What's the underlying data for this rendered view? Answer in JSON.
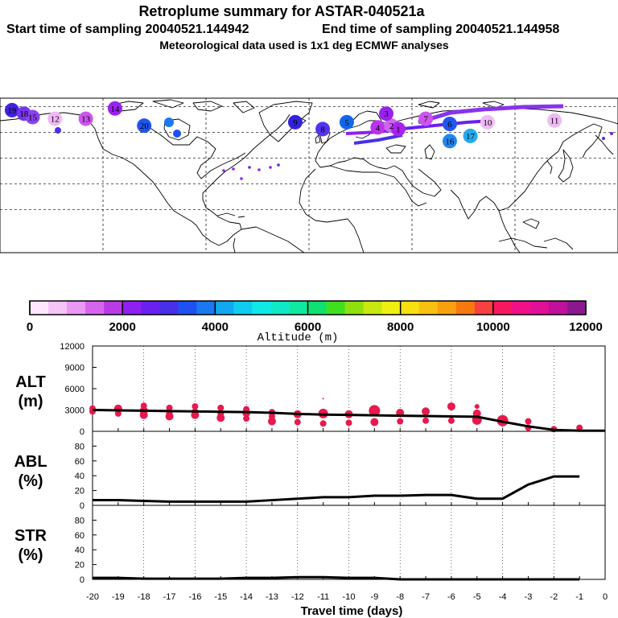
{
  "header": {
    "title": "Retroplume summary for ASTAR-040521a",
    "start_label": "Start time of sampling 20040521.144942",
    "end_label": "End time of sampling 20040521.144958",
    "met_label": "Meteorological data used is 1x1 deg ECMWF analyses"
  },
  "map": {
    "plume_labels": [
      {
        "text": "19",
        "lon": -173,
        "lat": 73,
        "color": "#4422dd"
      },
      {
        "text": "18",
        "lon": -166,
        "lat": 71,
        "color": "#7733ee"
      },
      {
        "text": "15",
        "lon": -161,
        "lat": 69,
        "color": "#8844ee"
      },
      {
        "text": "12",
        "lon": -148,
        "lat": 68,
        "color": "#f0b8f4"
      },
      {
        "text": "13",
        "lon": -130,
        "lat": 68,
        "color": "#cc55ee"
      },
      {
        "text": "14",
        "lon": -113,
        "lat": 74,
        "color": "#9922ee"
      },
      {
        "text": "20",
        "lon": -96,
        "lat": 64,
        "color": "#2255ee"
      },
      {
        "text": "9",
        "lon": -8,
        "lat": 66,
        "color": "#3322dd"
      },
      {
        "text": "8",
        "lon": 8,
        "lat": 62,
        "color": "#5533ee"
      },
      {
        "text": "5",
        "lon": 22,
        "lat": 66,
        "color": "#1166ee"
      },
      {
        "text": "4",
        "lon": 40,
        "lat": 63,
        "color": "#bb33ee"
      },
      {
        "text": "2",
        "lon": 48,
        "lat": 64,
        "color": "#cc66f0"
      },
      {
        "text": "3",
        "lon": 45,
        "lat": 71,
        "color": "#9922ee"
      },
      {
        "text": "1",
        "lon": 52,
        "lat": 62,
        "color": "#aa22ee"
      },
      {
        "text": "7",
        "lon": 68,
        "lat": 68,
        "color": "#cc55ee"
      },
      {
        "text": "6",
        "lon": 82,
        "lat": 65,
        "color": "#2255ee"
      },
      {
        "text": "10",
        "lon": 104,
        "lat": 66,
        "color": "#eebbf4"
      },
      {
        "text": "11",
        "lon": 143,
        "lat": 67,
        "color": "#eebbf4"
      },
      {
        "text": "16",
        "lon": 82,
        "lat": 55,
        "color": "#2288ee"
      },
      {
        "text": "17",
        "lon": 94,
        "lat": 58,
        "color": "#22aaee"
      }
    ]
  },
  "colorbar": {
    "tick_labels": [
      "0",
      "2000",
      "4000",
      "6000",
      "8000",
      "10000",
      "12000"
    ],
    "axis_label": "Altitude (m)",
    "colors": [
      "#ffe8ff",
      "#f6c4f8",
      "#ea98f4",
      "#d665ee",
      "#b93be8",
      "#8f20f2",
      "#6a20f0",
      "#4830e8",
      "#2050f0",
      "#1a78f0",
      "#10a8f0",
      "#10ccf0",
      "#10e8e8",
      "#10e8c8",
      "#10e8a0",
      "#10e070",
      "#40e020",
      "#90e010",
      "#c8e810",
      "#f0f010",
      "#f8e010",
      "#f8c010",
      "#f8a010",
      "#f87810",
      "#f84040",
      "#f81860",
      "#f01088",
      "#e01098",
      "#c0109c",
      "#8c1890"
    ]
  },
  "chart_data": {
    "type": "line",
    "title": "Retroplume summary for ASTAR-040521a",
    "x": [
      -20,
      -19,
      -18,
      -17,
      -16,
      -15,
      -14,
      -13,
      -12,
      -11,
      -10,
      -9,
      -8,
      -7,
      -6,
      -5,
      -4,
      -3,
      -2,
      -1
    ],
    "xlabel": "Travel time (days)",
    "x_tick_labels": [
      "-20",
      "-19",
      "-18",
      "-17",
      "-16",
      "-15",
      "-14",
      "-13",
      "-12",
      "-11",
      "-10",
      "-9",
      "-8",
      "-7",
      "-6",
      "-5",
      "-4",
      "-3",
      "-2",
      "-1",
      "0"
    ],
    "xlim": [
      -20,
      0
    ],
    "panels": [
      {
        "name": "alt",
        "label_line1": "ALT",
        "label_line2": "(m)",
        "ylim": [
          0,
          12000
        ],
        "y_tick_labels": [
          "0",
          "3000",
          "6000",
          "9000",
          "12000"
        ],
        "series": [
          {
            "name": "mean altitude",
            "values": [
              3000,
              2950,
              2900,
              2850,
              2800,
              2750,
              2700,
              2600,
              2450,
              2350,
              2300,
              2250,
              2200,
              2150,
              2100,
              2050,
              1350,
              700,
              200,
              80
            ]
          }
        ],
        "points": [
          {
            "day": -20,
            "alt": 2800,
            "r": 4
          },
          {
            "day": -20,
            "alt": 3200,
            "r": 4
          },
          {
            "day": -19,
            "alt": 2500,
            "r": 4
          },
          {
            "day": -19,
            "alt": 3200,
            "r": 5
          },
          {
            "day": -18,
            "alt": 2300,
            "r": 5
          },
          {
            "day": -18,
            "alt": 2900,
            "r": 5
          },
          {
            "day": -18,
            "alt": 3600,
            "r": 4
          },
          {
            "day": -17,
            "alt": 2100,
            "r": 5
          },
          {
            "day": -17,
            "alt": 2600,
            "r": 4
          },
          {
            "day": -17,
            "alt": 3300,
            "r": 4
          },
          {
            "day": -16,
            "alt": 2300,
            "r": 5
          },
          {
            "day": -16,
            "alt": 2800,
            "r": 4
          },
          {
            "day": -16,
            "alt": 3500,
            "r": 4
          },
          {
            "day": -15,
            "alt": 1900,
            "r": 5
          },
          {
            "day": -15,
            "alt": 2500,
            "r": 4
          },
          {
            "day": -15,
            "alt": 3300,
            "r": 4
          },
          {
            "day": -14,
            "alt": 1800,
            "r": 4
          },
          {
            "day": -14,
            "alt": 2600,
            "r": 5
          },
          {
            "day": -14,
            "alt": 3100,
            "r": 4
          },
          {
            "day": -13,
            "alt": 1400,
            "r": 5
          },
          {
            "day": -13,
            "alt": 2100,
            "r": 4
          },
          {
            "day": -13,
            "alt": 2700,
            "r": 4
          },
          {
            "day": -12,
            "alt": 1300,
            "r": 4
          },
          {
            "day": -12,
            "alt": 2400,
            "r": 5
          },
          {
            "day": -11,
            "alt": 1100,
            "r": 4
          },
          {
            "day": -11,
            "alt": 2500,
            "r": 6
          },
          {
            "day": -11,
            "alt": 4600,
            "r": 1
          },
          {
            "day": -10,
            "alt": 1200,
            "r": 4
          },
          {
            "day": -10,
            "alt": 2400,
            "r": 5
          },
          {
            "day": -9,
            "alt": 1300,
            "r": 5
          },
          {
            "day": -9,
            "alt": 2900,
            "r": 7
          },
          {
            "day": -8,
            "alt": 1400,
            "r": 4
          },
          {
            "day": -8,
            "alt": 2600,
            "r": 5
          },
          {
            "day": -7,
            "alt": 1500,
            "r": 4
          },
          {
            "day": -7,
            "alt": 2800,
            "r": 5
          },
          {
            "day": -6,
            "alt": 1500,
            "r": 4
          },
          {
            "day": -6,
            "alt": 3500,
            "r": 5
          },
          {
            "day": -5,
            "alt": 1600,
            "r": 6
          },
          {
            "day": -5,
            "alt": 2500,
            "r": 5
          },
          {
            "day": -5,
            "alt": 3500,
            "r": 3
          },
          {
            "day": -4,
            "alt": 1500,
            "r": 7
          },
          {
            "day": -3,
            "alt": 500,
            "r": 4
          },
          {
            "day": -3,
            "alt": 1400,
            "r": 4
          },
          {
            "day": -2,
            "alt": 300,
            "r": 4
          },
          {
            "day": -1,
            "alt": 500,
            "r": 4
          }
        ]
      },
      {
        "name": "abl",
        "label_line1": "ABL",
        "label_line2": "(%)",
        "ylim": [
          0,
          100
        ],
        "y_tick_labels": [
          "0",
          "20",
          "40",
          "60",
          "80"
        ],
        "series": [
          {
            "name": "fraction in ABL",
            "values": [
              7,
              7,
              6,
              5,
              5,
              5,
              5,
              7,
              9,
              11,
              11,
              13,
              13,
              14,
              14,
              9,
              9,
              28,
              39,
              39
            ]
          }
        ]
      },
      {
        "name": "str",
        "label_line1": "STR",
        "label_line2": "(%)",
        "ylim": [
          0,
          100
        ],
        "y_tick_labels": [
          "0",
          "20",
          "40",
          "60",
          "80"
        ],
        "series": [
          {
            "name": "fraction in stratosphere",
            "values": [
              2,
              2,
              1,
              1,
              1,
              1,
              2,
              2,
              3,
              3,
              2,
              2,
              0,
              0,
              0,
              0,
              0,
              0,
              0,
              0
            ]
          }
        ]
      }
    ],
    "colors": {
      "line": "#000000",
      "points": "#e8194d"
    }
  }
}
